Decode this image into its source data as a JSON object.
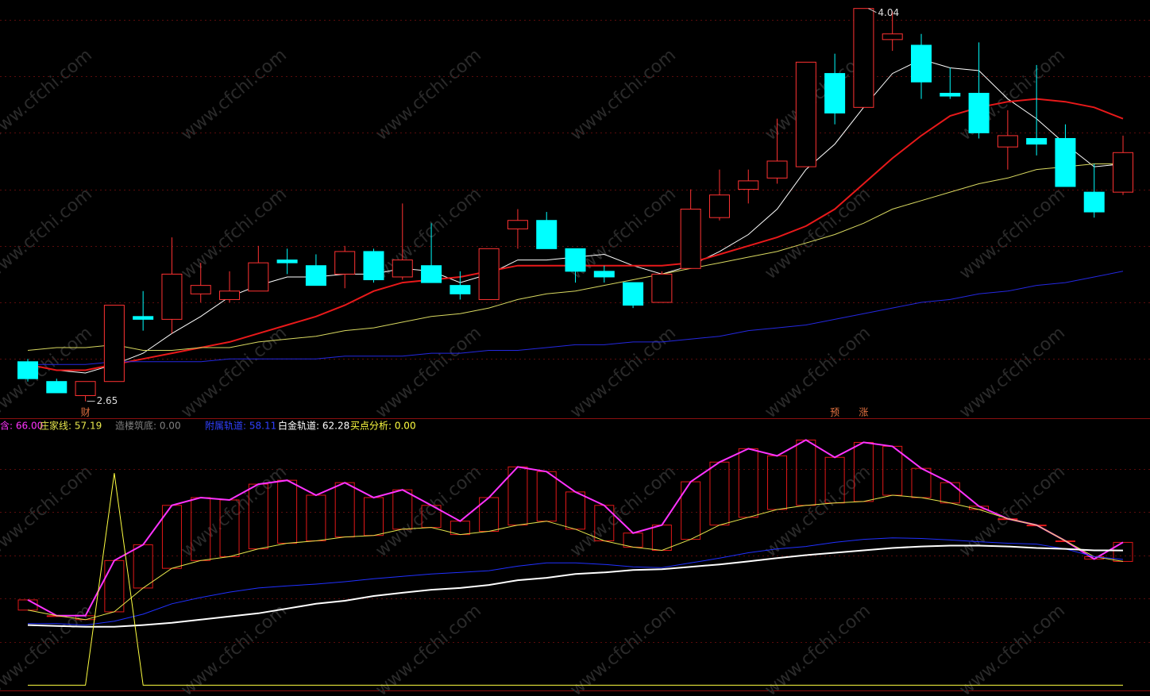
{
  "watermark": "www.cfchi.com",
  "chart_data": [
    {
      "type": "candlestick",
      "open": [
        2.79,
        2.72,
        2.67,
        2.72,
        2.95,
        2.94,
        3.03,
        3.01,
        3.04,
        3.15,
        3.13,
        3.1,
        3.18,
        3.09,
        3.13,
        3.06,
        3.01,
        3.26,
        3.29,
        3.19,
        3.11,
        3.07,
        3.0,
        3.12,
        3.3,
        3.4,
        3.44,
        3.48,
        3.81,
        3.69,
        3.93,
        3.91,
        3.74,
        3.74,
        3.55,
        3.58,
        3.58,
        3.39,
        3.39
      ],
      "high": [
        2.8,
        2.73,
        2.72,
        2.99,
        3.04,
        3.23,
        3.14,
        3.11,
        3.2,
        3.19,
        3.17,
        3.2,
        3.19,
        3.35,
        3.28,
        3.11,
        3.19,
        3.33,
        3.32,
        3.19,
        3.13,
        3.07,
        3.11,
        3.4,
        3.47,
        3.47,
        3.65,
        3.85,
        3.88,
        4.04,
        4.03,
        3.95,
        3.83,
        3.92,
        3.68,
        3.84,
        3.63,
        3.49,
        3.59
      ],
      "low": [
        2.72,
        2.68,
        2.65,
        2.72,
        2.9,
        2.89,
        3.0,
        3.0,
        3.04,
        3.1,
        3.06,
        3.05,
        3.07,
        3.08,
        3.07,
        3.01,
        3.01,
        3.19,
        3.19,
        3.07,
        3.07,
        2.98,
        3.0,
        3.12,
        3.29,
        3.35,
        3.42,
        3.48,
        3.63,
        3.69,
        3.89,
        3.72,
        3.72,
        3.58,
        3.47,
        3.52,
        3.41,
        3.3,
        3.38
      ],
      "close": [
        2.73,
        2.68,
        2.72,
        2.99,
        2.94,
        3.1,
        3.06,
        3.04,
        3.14,
        3.14,
        3.06,
        3.18,
        3.08,
        3.15,
        3.07,
        3.03,
        3.19,
        3.29,
        3.19,
        3.11,
        3.09,
        2.99,
        3.1,
        3.33,
        3.38,
        3.43,
        3.5,
        3.85,
        3.67,
        4.04,
        3.95,
        3.78,
        3.73,
        3.6,
        3.59,
        3.56,
        3.41,
        3.32,
        3.53
      ],
      "up_color": "#ff3232",
      "down_color": "#00ffff",
      "ylim": [
        2.59,
        4.07
      ],
      "ygrid": [
        2.8,
        3.0,
        3.2,
        3.4,
        3.6,
        3.8,
        4.0
      ],
      "series": [
        {
          "color": "#ffffff",
          "values": [
            2.78,
            2.76,
            2.75,
            2.78,
            2.82,
            2.89,
            2.95,
            3.02,
            3.06,
            3.09,
            3.09,
            3.1,
            3.1,
            3.12,
            3.11,
            3.07,
            3.1,
            3.15,
            3.15,
            3.16,
            3.17,
            3.13,
            3.1,
            3.13,
            3.18,
            3.24,
            3.33,
            3.47,
            3.56,
            3.69,
            3.81,
            3.86,
            3.83,
            3.82,
            3.72,
            3.65,
            3.56,
            3.48,
            3.49
          ]
        },
        {
          "color": "#e8191a",
          "values": [
            2.78,
            2.76,
            2.76,
            2.78,
            2.8,
            2.82,
            2.84,
            2.86,
            2.89,
            2.92,
            2.95,
            2.99,
            3.04,
            3.07,
            3.08,
            3.09,
            3.11,
            3.13,
            3.13,
            3.13,
            3.13,
            3.13,
            3.13,
            3.14,
            3.17,
            3.2,
            3.23,
            3.27,
            3.33,
            3.42,
            3.51,
            3.59,
            3.66,
            3.69,
            3.71,
            3.72,
            3.71,
            3.69,
            3.65
          ]
        },
        {
          "color": "#d8d860",
          "values": [
            2.83,
            2.84,
            2.84,
            2.85,
            2.83,
            2.83,
            2.84,
            2.84,
            2.86,
            2.87,
            2.88,
            2.9,
            2.91,
            2.93,
            2.95,
            2.96,
            2.98,
            3.01,
            3.03,
            3.04,
            3.06,
            3.08,
            3.1,
            3.12,
            3.14,
            3.16,
            3.18,
            3.21,
            3.24,
            3.28,
            3.33,
            3.36,
            3.39,
            3.42,
            3.44,
            3.47,
            3.48,
            3.49,
            3.49
          ]
        },
        {
          "color": "#2428e0",
          "values": [
            2.78,
            2.78,
            2.78,
            2.79,
            2.79,
            2.79,
            2.79,
            2.8,
            2.8,
            2.8,
            2.8,
            2.81,
            2.81,
            2.81,
            2.82,
            2.82,
            2.83,
            2.83,
            2.84,
            2.85,
            2.85,
            2.86,
            2.86,
            2.87,
            2.88,
            2.9,
            2.91,
            2.92,
            2.94,
            2.96,
            2.98,
            3.0,
            3.01,
            3.03,
            3.04,
            3.06,
            3.07,
            3.09,
            3.11
          ]
        }
      ],
      "max_label": "4.04",
      "min_label": "2.65",
      "tags": [
        null,
        null,
        "财",
        null,
        null,
        null,
        null,
        null,
        null,
        null,
        null,
        null,
        null,
        null,
        null,
        null,
        null,
        null,
        null,
        null,
        null,
        null,
        null,
        null,
        null,
        null,
        null,
        null,
        "预",
        "涨",
        null,
        null,
        null,
        null,
        null,
        null,
        null,
        null,
        null
      ],
      "tag_color": "#e07040"
    },
    {
      "type": "line",
      "ylim": [
        -5,
        123
      ],
      "ygrid": [
        20,
        40,
        60,
        80,
        100
      ],
      "box_color": "#e01818",
      "legend": [
        {
          "text": "含: 66.00",
          "color": "#ff33ff"
        },
        {
          "text": "庄家线: 57.19",
          "color": "#e6e64c"
        },
        {
          "text": "造楼筑底: 0.00",
          "color": "#808080"
        },
        {
          "text": "附属轨道: 58.11",
          "color": "#3040ff"
        },
        {
          "text": "白金轨道: 62.28",
          "color": "#ffffff"
        },
        {
          "text": "买点分析: 0.00",
          "color": "#ffff40"
        }
      ],
      "series": [
        {
          "color": "#ff33ff",
          "width": 2,
          "values": [
            39.4,
            32.1,
            32.1,
            57.6,
            64.9,
            83.1,
            86.7,
            85.6,
            92.9,
            94.7,
            87.8,
            93.6,
            86.7,
            90.3,
            83.1,
            75.8,
            86.7,
            100.9,
            98.7,
            89.3,
            83.1,
            70.3,
            74.0,
            94.0,
            103.1,
            109.3,
            106.0,
            113.3,
            105.3,
            112.2,
            110.4,
            100.2,
            93.6,
            82.7,
            76.9,
            74.0,
            66.7,
            58.3,
            66.0
          ]
        },
        {
          "color": "#e6e64c",
          "width": 1,
          "values": [
            34.7,
            32.1,
            30.3,
            33.9,
            44.9,
            54.0,
            57.6,
            59.4,
            63.0,
            65.6,
            66.7,
            68.5,
            69.2,
            72.1,
            72.9,
            69.6,
            71.1,
            74.0,
            75.8,
            72.1,
            66.7,
            63.8,
            62.3,
            67.4,
            74.0,
            77.6,
            81.2,
            83.1,
            84.2,
            84.9,
            87.8,
            86.7,
            84.2,
            81.2,
            76.9,
            74.0,
            66.7,
            59.4,
            57.19
          ]
        },
        {
          "color": "#2030ff",
          "width": 1,
          "values": [
            28.5,
            28.5,
            27.8,
            29.6,
            32.8,
            37.6,
            40.5,
            43.0,
            44.9,
            45.9,
            46.7,
            47.8,
            49.2,
            50.3,
            51.4,
            52.1,
            52.9,
            55.0,
            56.5,
            56.5,
            55.8,
            54.7,
            54.3,
            56.5,
            58.7,
            61.2,
            63.0,
            64.1,
            66.0,
            67.4,
            68.1,
            67.8,
            67.1,
            66.3,
            65.6,
            65.2,
            63.0,
            59.4,
            58.11
          ]
        },
        {
          "color": "#ffffff",
          "width": 2,
          "values": [
            27.8,
            27.4,
            27.0,
            27.0,
            27.8,
            28.8,
            30.3,
            31.8,
            33.2,
            35.4,
            37.6,
            39.0,
            41.2,
            42.7,
            44.1,
            44.9,
            46.3,
            48.5,
            49.6,
            51.4,
            52.1,
            53.2,
            53.6,
            54.7,
            55.8,
            57.2,
            58.7,
            60.1,
            61.2,
            62.3,
            63.4,
            64.1,
            64.5,
            64.5,
            64.1,
            63.4,
            63.0,
            62.3,
            62.28
          ]
        },
        {
          "color": "#ffff40",
          "width": 1,
          "values": [
            0,
            0,
            0,
            98,
            0,
            0,
            0,
            0,
            0,
            0,
            0,
            0,
            0,
            0,
            0,
            0,
            0,
            0,
            0,
            0,
            0,
            0,
            0,
            0,
            0,
            0,
            0,
            0,
            0,
            0,
            0,
            0,
            0,
            0,
            0,
            0,
            0,
            0,
            0
          ]
        }
      ]
    }
  ]
}
